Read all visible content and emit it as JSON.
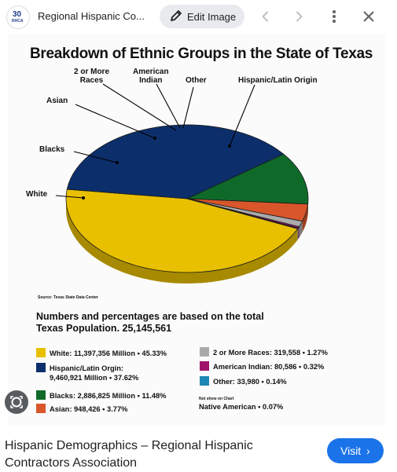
{
  "topbar": {
    "site_logo_text": "30",
    "site_logo_sub": "RHCA",
    "site_name": "Regional Hispanic Co...",
    "edit_image_label": "Edit Image"
  },
  "chart": {
    "title": "Breakdown of Ethnic Groups in the State of Texas",
    "source": "Source: Texas State Data Center",
    "summary_line1": "Numbers and percentages are based on the total",
    "summary_line2": "Texas Population. 25,145,561",
    "not_shown_label": "Not show on Chart",
    "native_american": "Native American • 0.07%",
    "pie_labels": {
      "two_or_more_line1": "2 or More",
      "two_or_more_line2": "Races",
      "american_indian_line1": "American",
      "american_indian_line2": "Indian",
      "other": "Other",
      "hispanic": "Hispanic/Latin Origin",
      "asian": "Asian",
      "blacks": "Blacks",
      "white": "White"
    },
    "legend": {
      "white": "White: 11,397,356 Million • 45.33%",
      "hispanic_line1": "Hispanic/Latin Orgin:",
      "hispanic_line2": "9,460,921 Million • 37.62%",
      "blacks": "Blacks: 2,886,825 Million • 11.48%",
      "asian": "Asian: 948,426 • 3.77%",
      "two_or_more": "2 or More Races: 319,558 • 1.27%",
      "american_indian": "American Indian: 80,586 • 0.32%",
      "other": "Other: 33,980 • 0.14%"
    },
    "colors": {
      "white": "#e8c000",
      "hispanic": "#0c2f6b",
      "blacks": "#0f6a2a",
      "asian": "#d9562b",
      "two_or_more": "#aaaaaa",
      "american_indian": "#a0136b",
      "other": "#1e87b5"
    }
  },
  "chart_data": {
    "type": "pie",
    "title": "Breakdown of Ethnic Groups in the State of Texas",
    "categories": [
      "White",
      "Hispanic/Latin Origin",
      "Blacks",
      "Asian",
      "2 or More Races",
      "American Indian",
      "Other"
    ],
    "values": [
      45.33,
      37.62,
      11.48,
      3.77,
      1.27,
      0.32,
      0.14
    ],
    "counts": [
      11397356,
      9460921,
      2886825,
      948426,
      319558,
      80586,
      33980
    ],
    "total": 25145561
  },
  "footer": {
    "title": "Hispanic Demographics – Regional Hispanic Contractors Association",
    "visit_label": "Visit",
    "visit_chevron": "›"
  }
}
